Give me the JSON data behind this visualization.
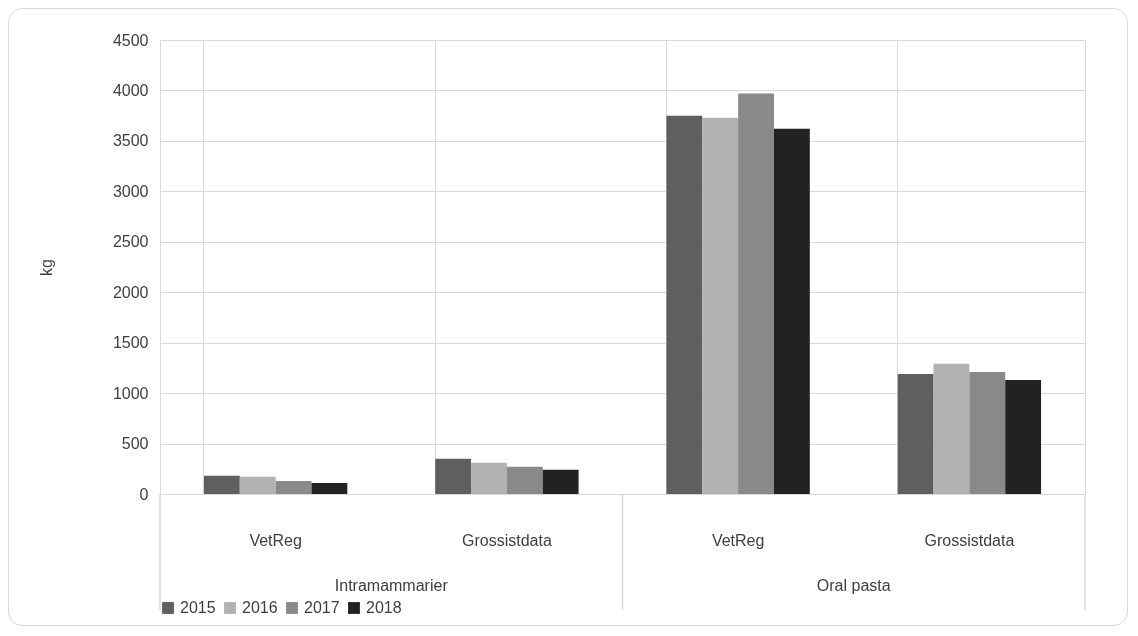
{
  "chart_data": {
    "type": "bar",
    "ylabel": "kg",
    "categories": [
      "VetReg",
      "Grossistdata",
      "VetReg",
      "Grossistdata"
    ],
    "annotations": [
      "Intramammarier",
      "Oral pasta"
    ],
    "series": [
      {
        "name": "2015",
        "color": "#5f5f5f",
        "values": [
          180,
          350,
          3750,
          1190
        ]
      },
      {
        "name": "2016",
        "color": "#b2b2b2",
        "values": [
          170,
          310,
          3730,
          1290
        ]
      },
      {
        "name": "2017",
        "color": "#898989",
        "values": [
          130,
          270,
          3970,
          1210
        ]
      },
      {
        "name": "2018",
        "color": "#222222",
        "values": [
          110,
          240,
          3620,
          1130
        ]
      }
    ],
    "ylim": [
      0,
      4500
    ],
    "yticks": [
      0,
      500,
      1000,
      1500,
      2000,
      2500,
      3000,
      3500,
      4000,
      4500
    ],
    "grid": true,
    "legend": "bottom"
  }
}
